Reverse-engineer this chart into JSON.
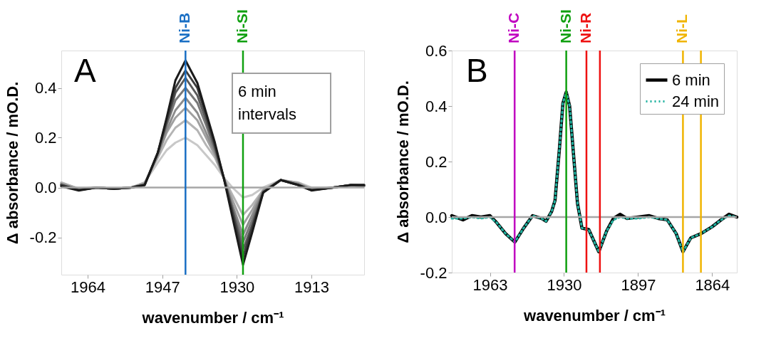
{
  "chart_data": [
    {
      "type": "line",
      "xlabel": "wavenumber / cm⁻¹",
      "ylabel": "Δ absorbance / mO.D.",
      "x": [
        1970,
        1966,
        1962,
        1958,
        1954,
        1951,
        1948,
        1946,
        1944,
        1941.7,
        1939,
        1937,
        1935,
        1933,
        1931,
        1928.6,
        1926.5,
        1924,
        1920,
        1916,
        1913,
        1908,
        1904,
        1901
      ],
      "xlim": [
        1970,
        1901
      ],
      "xticks": [
        1964,
        1947,
        1930,
        1913
      ],
      "ylim": [
        -0.35,
        0.55
      ],
      "yticks": [
        -0.2,
        {
          "value": 0,
          "label": "0.0"
        },
        0.2,
        0.4
      ],
      "grid": false,
      "line_style": "solid",
      "series": [
        {
          "color": "#c8c8c8",
          "values": [
            0.02,
            -0.005,
            0,
            -0.005,
            0,
            0.02,
            0.1,
            0.15,
            0.18,
            0.2,
            0.17,
            0.13,
            0.09,
            0.04,
            0.0,
            -0.04,
            -0.03,
            0.0,
            0.03,
            0.02,
            0.0,
            0.0,
            0.01,
            0.005
          ]
        },
        {
          "color": "#b4b4b4",
          "values": [
            0.02,
            -0.005,
            0,
            -0.005,
            0,
            0.02,
            0.12,
            0.19,
            0.24,
            0.27,
            0.23,
            0.17,
            0.12,
            0.04,
            -0.03,
            -0.11,
            -0.07,
            -0.01,
            0.03,
            0.02,
            -0.005,
            0,
            0.01,
            0.005
          ]
        },
        {
          "color": "#a0a0a0",
          "values": [
            0.015,
            -0.008,
            0,
            -0.005,
            0,
            0.015,
            0.13,
            0.22,
            0.28,
            0.32,
            0.27,
            0.2,
            0.13,
            0.04,
            -0.05,
            -0.15,
            -0.09,
            -0.01,
            0.03,
            0.015,
            -0.005,
            0,
            0.01,
            0.005
          ]
        },
        {
          "color": "#8c8c8c",
          "values": [
            0.015,
            -0.008,
            0,
            -0.005,
            0,
            0.015,
            0.13,
            0.23,
            0.31,
            0.36,
            0.3,
            0.22,
            0.14,
            0.04,
            -0.07,
            -0.19,
            -0.11,
            -0.015,
            0.03,
            0.015,
            -0.008,
            0,
            0.01,
            0.008
          ]
        },
        {
          "color": "#787878",
          "values": [
            0.01,
            -0.01,
            0,
            -0.005,
            0,
            0.012,
            0.14,
            0.25,
            0.35,
            0.4,
            0.34,
            0.25,
            0.15,
            0.04,
            -0.08,
            -0.22,
            -0.13,
            -0.015,
            0.03,
            0.012,
            -0.01,
            0,
            0.01,
            0.008
          ]
        },
        {
          "color": "#5a5a5a",
          "values": [
            0.01,
            -0.01,
            0,
            -0.005,
            0,
            0.01,
            0.14,
            0.26,
            0.38,
            0.44,
            0.37,
            0.27,
            0.16,
            0.04,
            -0.09,
            -0.25,
            -0.15,
            -0.02,
            0.03,
            0.01,
            -0.01,
            0,
            0.01,
            0.01
          ]
        },
        {
          "color": "#3c3c3c",
          "values": [
            0.01,
            -0.01,
            0,
            -0.005,
            0,
            0.01,
            0.14,
            0.27,
            0.4,
            0.47,
            0.4,
            0.29,
            0.17,
            0.04,
            -0.1,
            -0.28,
            -0.16,
            -0.02,
            0.03,
            0.01,
            -0.01,
            0,
            0.01,
            0.01
          ]
        },
        {
          "color": "#1a1a1a",
          "values": [
            0.005,
            -0.012,
            0,
            -0.005,
            0,
            0.01,
            0.14,
            0.28,
            0.43,
            0.51,
            0.42,
            0.3,
            0.18,
            0.04,
            -0.12,
            -0.31,
            -0.18,
            -0.02,
            0.03,
            0.01,
            -0.012,
            0,
            0.01,
            0.01
          ]
        }
      ],
      "ref_lines": [
        {
          "axis": "x",
          "value": 1941.7,
          "label": "Ni-B",
          "color": "#1a6fc4"
        },
        {
          "axis": "x",
          "value": 1928.6,
          "label": "Ni-SI",
          "color": "#10a010"
        },
        {
          "axis": "y",
          "value": 0,
          "label": null,
          "color": "#a6a6a6"
        }
      ],
      "annotations": [
        "A",
        "6 min\nintervals"
      ]
    },
    {
      "type": "line",
      "xlabel": "wavenumber / cm⁻¹",
      "ylabel": "Δ absorbance / mO.D.",
      "x": [
        1980,
        1975,
        1971,
        1967,
        1963,
        1960,
        1956,
        1951.9,
        1948,
        1944,
        1940,
        1938,
        1935.5,
        1934,
        1932,
        1930.5,
        1929,
        1927.5,
        1925.5,
        1924,
        1922,
        1919,
        1914.5,
        1911,
        1908,
        1905,
        1902,
        1897,
        1892,
        1888,
        1884,
        1880,
        1877,
        1873.5,
        1869,
        1864,
        1860,
        1856.5,
        1853
      ],
      "xlim": [
        1980,
        1853
      ],
      "xticks": [
        1963,
        1930,
        1897,
        1864
      ],
      "ylim": [
        -0.2,
        0.6
      ],
      "yticks": [
        -0.2,
        {
          "value": 0,
          "label": "0.0"
        },
        0.2,
        0.4,
        0.6
      ],
      "grid": false,
      "legend": "top right",
      "series": [
        {
          "name": "6 min",
          "color": "#000000",
          "line_style": "solid",
          "values": [
            0.005,
            -0.01,
            0.005,
            0,
            0.005,
            -0.02,
            -0.06,
            -0.09,
            -0.04,
            0.005,
            -0.005,
            -0.015,
            0.02,
            0.06,
            0.25,
            0.41,
            0.45,
            0.4,
            0.2,
            0.05,
            -0.04,
            -0.045,
            -0.125,
            -0.05,
            -0.005,
            0.01,
            -0.005,
            0,
            0.005,
            -0.005,
            -0.01,
            -0.06,
            -0.125,
            -0.075,
            -0.06,
            -0.035,
            -0.01,
            0.01,
            0
          ]
        },
        {
          "name": "24 min",
          "color": "#20b2a0",
          "line_style": "dotted",
          "values": [
            -0.005,
            -0.005,
            0,
            -0.005,
            0,
            -0.02,
            -0.06,
            -0.09,
            -0.04,
            0.005,
            -0.005,
            -0.015,
            0.02,
            0.06,
            0.25,
            0.41,
            0.45,
            0.4,
            0.2,
            0.05,
            -0.04,
            -0.045,
            -0.125,
            -0.05,
            -0.01,
            0,
            -0.005,
            -0.005,
            0,
            -0.005,
            -0.01,
            -0.06,
            -0.125,
            -0.075,
            -0.06,
            -0.035,
            -0.01,
            0.005,
            0
          ]
        }
      ],
      "ref_lines": [
        {
          "axis": "x",
          "value": 1952,
          "label": "Ni-C",
          "color": "#c000c0"
        },
        {
          "axis": "x",
          "value": 1929,
          "label": "Ni-SI",
          "color": "#10a010"
        },
        {
          "axis": "x",
          "value": 1920,
          "label": "Ni-R",
          "color": "#ee1111"
        },
        {
          "axis": "x",
          "value": 1914,
          "label": null,
          "color": "#ee1111"
        },
        {
          "axis": "x",
          "value": 1877,
          "label": "Ni-L",
          "color": "#f0b400"
        },
        {
          "axis": "x",
          "value": 1869,
          "label": null,
          "color": "#f0b400"
        },
        {
          "axis": "y",
          "value": 0,
          "label": null,
          "color": "#a6a6a6"
        }
      ],
      "annotations": [
        "B"
      ]
    }
  ]
}
